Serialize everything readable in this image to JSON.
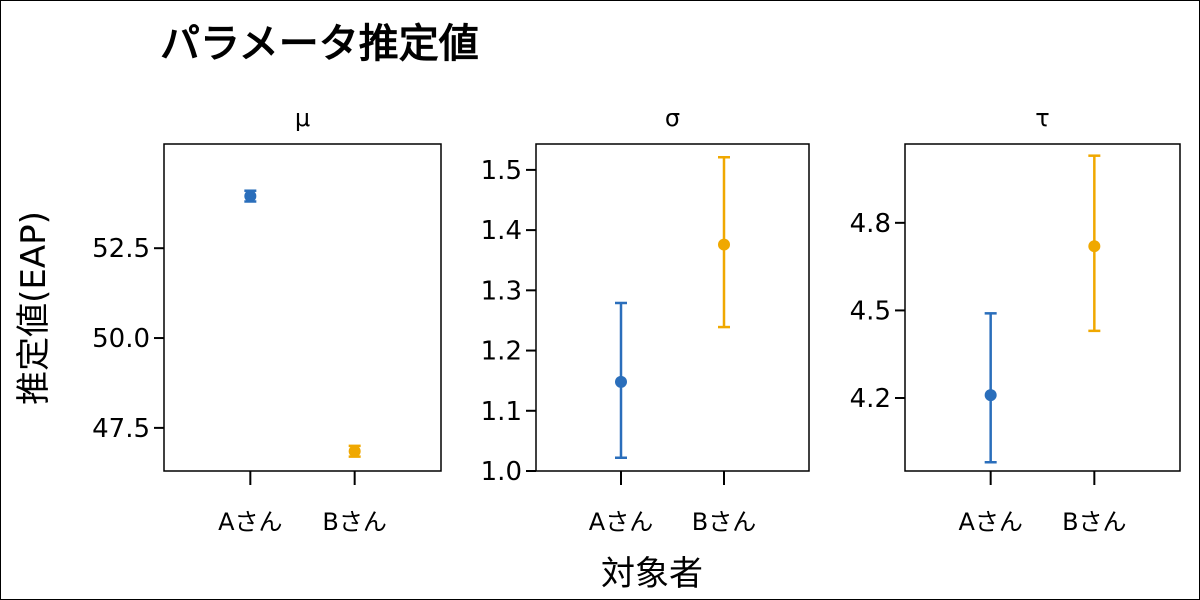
{
  "chart_data": {
    "type": "scatter",
    "title": "パラメータ推定値",
    "xlabel": "対象者",
    "ylabel": "推定値(EAP)",
    "categories": [
      "Aさん",
      "Bさん"
    ],
    "colors": {
      "Aさん": "#2a6ebb",
      "Bさん": "#f0a800"
    },
    "panels": [
      {
        "facet": "μ",
        "ylim": [
          46.3,
          55.4
        ],
        "yticks": [
          "47.5",
          "50.0",
          "52.5"
        ],
        "points": [
          {
            "category": "Aさん",
            "value": 53.95,
            "lower": 53.8,
            "upper": 54.1
          },
          {
            "category": "Bさん",
            "value": 46.85,
            "lower": 46.7,
            "upper": 47.0
          }
        ]
      },
      {
        "facet": "σ",
        "ylim": [
          1.0,
          1.543
        ],
        "yticks": [
          "1.0",
          "1.1",
          "1.2",
          "1.3",
          "1.4",
          "1.5"
        ],
        "points": [
          {
            "category": "Aさん",
            "value": 1.148,
            "lower": 1.022,
            "upper": 1.279
          },
          {
            "category": "Bさん",
            "value": 1.376,
            "lower": 1.239,
            "upper": 1.521
          }
        ]
      },
      {
        "facet": "τ",
        "ylim": [
          3.95,
          5.07
        ],
        "yticks": [
          "4.2",
          "4.5",
          "4.8"
        ],
        "points": [
          {
            "category": "Aさん",
            "value": 4.21,
            "lower": 3.98,
            "upper": 4.49
          },
          {
            "category": "Bさん",
            "value": 4.72,
            "lower": 4.43,
            "upper": 5.03
          }
        ]
      }
    ]
  }
}
